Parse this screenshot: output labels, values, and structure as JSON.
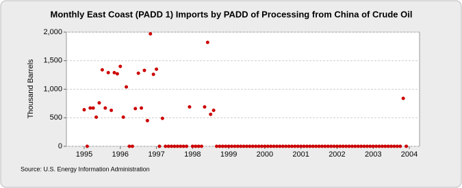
{
  "chart_data": {
    "type": "scatter",
    "title": "Monthly East Coast (PADD 1) Imports by PADD of Processing from China of Crude Oil",
    "y_label": "Thousand Barrels",
    "source": "Source: U.S. Energy Information Administration",
    "categories": [
      "1995",
      null,
      null,
      null,
      null,
      null,
      null,
      null,
      null,
      null,
      null,
      null,
      "1996",
      null,
      null,
      null,
      null,
      null,
      null,
      null,
      null,
      null,
      null,
      null,
      "1997",
      null,
      null,
      null,
      null,
      null,
      null,
      null,
      null,
      null,
      null,
      null,
      "1998",
      null,
      null,
      null,
      null,
      null,
      null,
      null,
      null,
      null,
      null,
      null,
      "1999",
      null,
      null,
      null,
      null,
      null,
      null,
      null,
      null,
      null,
      null,
      null,
      "2000",
      null,
      null,
      null,
      null,
      null,
      null,
      null,
      null,
      null,
      null,
      null,
      "2001",
      null,
      null,
      null,
      null,
      null,
      null,
      null,
      null,
      null,
      null,
      null,
      "2002",
      null,
      null,
      null,
      null,
      null,
      null,
      null,
      null,
      null,
      null,
      null,
      "2003",
      null,
      null,
      null,
      null,
      null,
      null,
      null,
      null,
      null,
      null,
      null,
      "2004"
    ],
    "series": [
      {
        "name": "Imports",
        "color": "#cc0000",
        "values": [
          640,
          0,
          670,
          670,
          510,
          760,
          1340,
          670,
          1290,
          630,
          1290,
          1270,
          1400,
          510,
          1040,
          0,
          0,
          660,
          1280,
          670,
          1330,
          450,
          1970,
          1260,
          1350,
          0,
          490,
          0,
          0,
          0,
          0,
          0,
          0,
          0,
          0,
          690,
          0,
          0,
          0,
          0,
          690,
          1820,
          560,
          630,
          0,
          0,
          0,
          0,
          0,
          0,
          0,
          0,
          0,
          0,
          0,
          0,
          0,
          0,
          0,
          0,
          0,
          0,
          0,
          0,
          0,
          0,
          0,
          0,
          0,
          0,
          0,
          0,
          0,
          0,
          0,
          0,
          0,
          0,
          0,
          0,
          0,
          0,
          0,
          0,
          0,
          0,
          0,
          0,
          0,
          0,
          0,
          0,
          0,
          0,
          0,
          0,
          0,
          0,
          0,
          0,
          0,
          0,
          0,
          0,
          0,
          0,
          840,
          0,
          null
        ]
      }
    ],
    "ylim": [
      0,
      2000
    ],
    "yticks": [
      0,
      500,
      {
        "value": 1000,
        "label": "1,000"
      },
      {
        "value": 1500,
        "label": "1,500"
      },
      {
        "value": 2000,
        "label": "2,000"
      }
    ],
    "grid": true
  }
}
